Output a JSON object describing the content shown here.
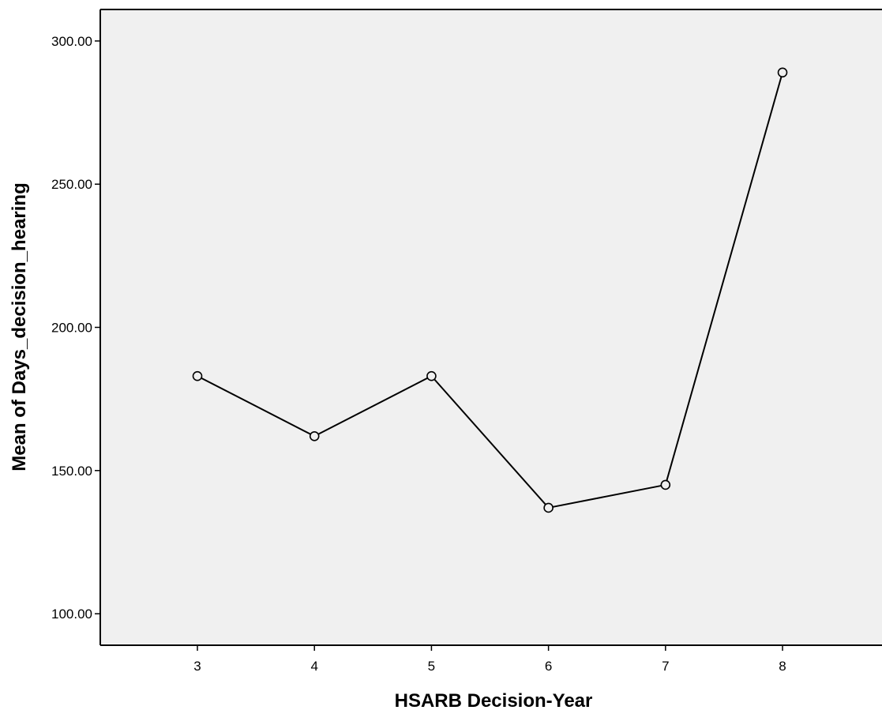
{
  "chart_data": {
    "type": "line",
    "title": "",
    "xlabel": "HSARB Decision-Year",
    "ylabel": "Mean of Days_decision_hearing",
    "categories": [
      "3",
      "4",
      "5",
      "6",
      "7",
      "8"
    ],
    "series": [
      {
        "values": [
          183.0,
          162.0,
          183.0,
          137.0,
          145.0,
          289.0
        ]
      }
    ],
    "y_ticks": [
      100,
      150,
      200,
      250,
      300
    ],
    "y_tick_labels": [
      "100.00",
      "150.00",
      "200.00",
      "250.00",
      "300.00"
    ],
    "ylim": [
      89,
      311
    ],
    "xlim": [
      2.17,
      8.85
    ],
    "grid": false,
    "legend": "none",
    "marker": "open-circle",
    "colors": {
      "plot_background": "#f0f0f0",
      "line": "#000000",
      "marker_fill": "#f0f0f0",
      "axis": "#000000"
    }
  }
}
